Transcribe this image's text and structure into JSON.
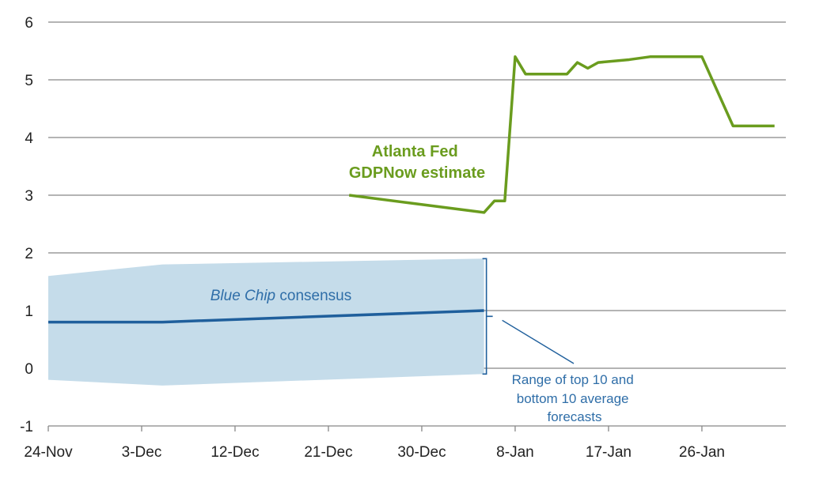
{
  "chart_data": {
    "type": "line",
    "title": "",
    "xlabel": "",
    "ylabel": "",
    "x_unit": "days since 24-Nov",
    "xlim": [
      0,
      71
    ],
    "ylim": [
      -1,
      6
    ],
    "yticks": [
      -1,
      0,
      1,
      2,
      3,
      4,
      5,
      6
    ],
    "xticks": [
      {
        "day": 0,
        "label": "24-Nov"
      },
      {
        "day": 9,
        "label": "3-Dec"
      },
      {
        "day": 18,
        "label": "12-Dec"
      },
      {
        "day": 27,
        "label": "21-Dec"
      },
      {
        "day": 36,
        "label": "30-Dec"
      },
      {
        "day": 45,
        "label": "8-Jan"
      },
      {
        "day": 54,
        "label": "17-Jan"
      },
      {
        "day": 63,
        "label": "26-Jan"
      }
    ],
    "grid": true,
    "series": [
      {
        "name": "Atlanta Fed GDPNow estimate",
        "label_lines": [
          "Atlanta Fed",
          "GDPNow estimate"
        ],
        "color": "#6a9c1e",
        "x": [
          29,
          42,
          43,
          44,
          45,
          46,
          50,
          51,
          52,
          53,
          56,
          58,
          63,
          66,
          70
        ],
        "y": [
          3.0,
          2.7,
          2.9,
          2.9,
          5.4,
          5.1,
          5.1,
          5.3,
          5.2,
          5.3,
          5.35,
          5.4,
          5.4,
          4.2,
          4.2
        ]
      },
      {
        "name": "Blue Chip consensus",
        "label_italic": "Blue Chip",
        "label_rest": " consensus",
        "color": "#1f5f9c",
        "x": [
          0,
          11,
          42
        ],
        "y": [
          0.8,
          0.8,
          1.0
        ]
      }
    ],
    "band": {
      "name": "Range of top 10 and bottom 10 average forecasts",
      "label_lines": [
        "Range of top 10 and",
        "bottom 10 average",
        "forecasts"
      ],
      "color": "#c5dcea",
      "x": [
        0,
        11,
        42
      ],
      "upper": [
        1.6,
        1.8,
        1.9
      ],
      "lower": [
        -0.2,
        -0.3,
        -0.1
      ]
    }
  }
}
